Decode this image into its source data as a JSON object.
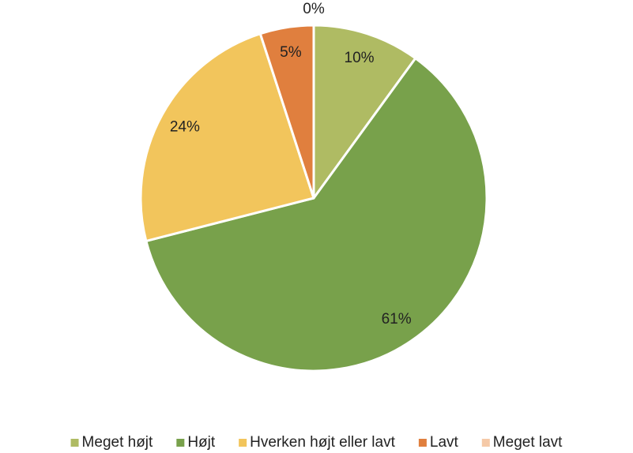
{
  "chart_data": {
    "type": "pie",
    "categories": [
      "Meget højt",
      "Højt",
      "Hverken højt eller lavt",
      "Lavt",
      "Meget lavt"
    ],
    "values": [
      10,
      61,
      24,
      5,
      0
    ],
    "value_labels": [
      "10%",
      "61%",
      "24%",
      "5%",
      "0%"
    ],
    "colors": [
      "#afbb63",
      "#78a14b",
      "#f2c55c",
      "#e07f3e",
      "#f5c9a7"
    ],
    "legend": "bottom"
  }
}
